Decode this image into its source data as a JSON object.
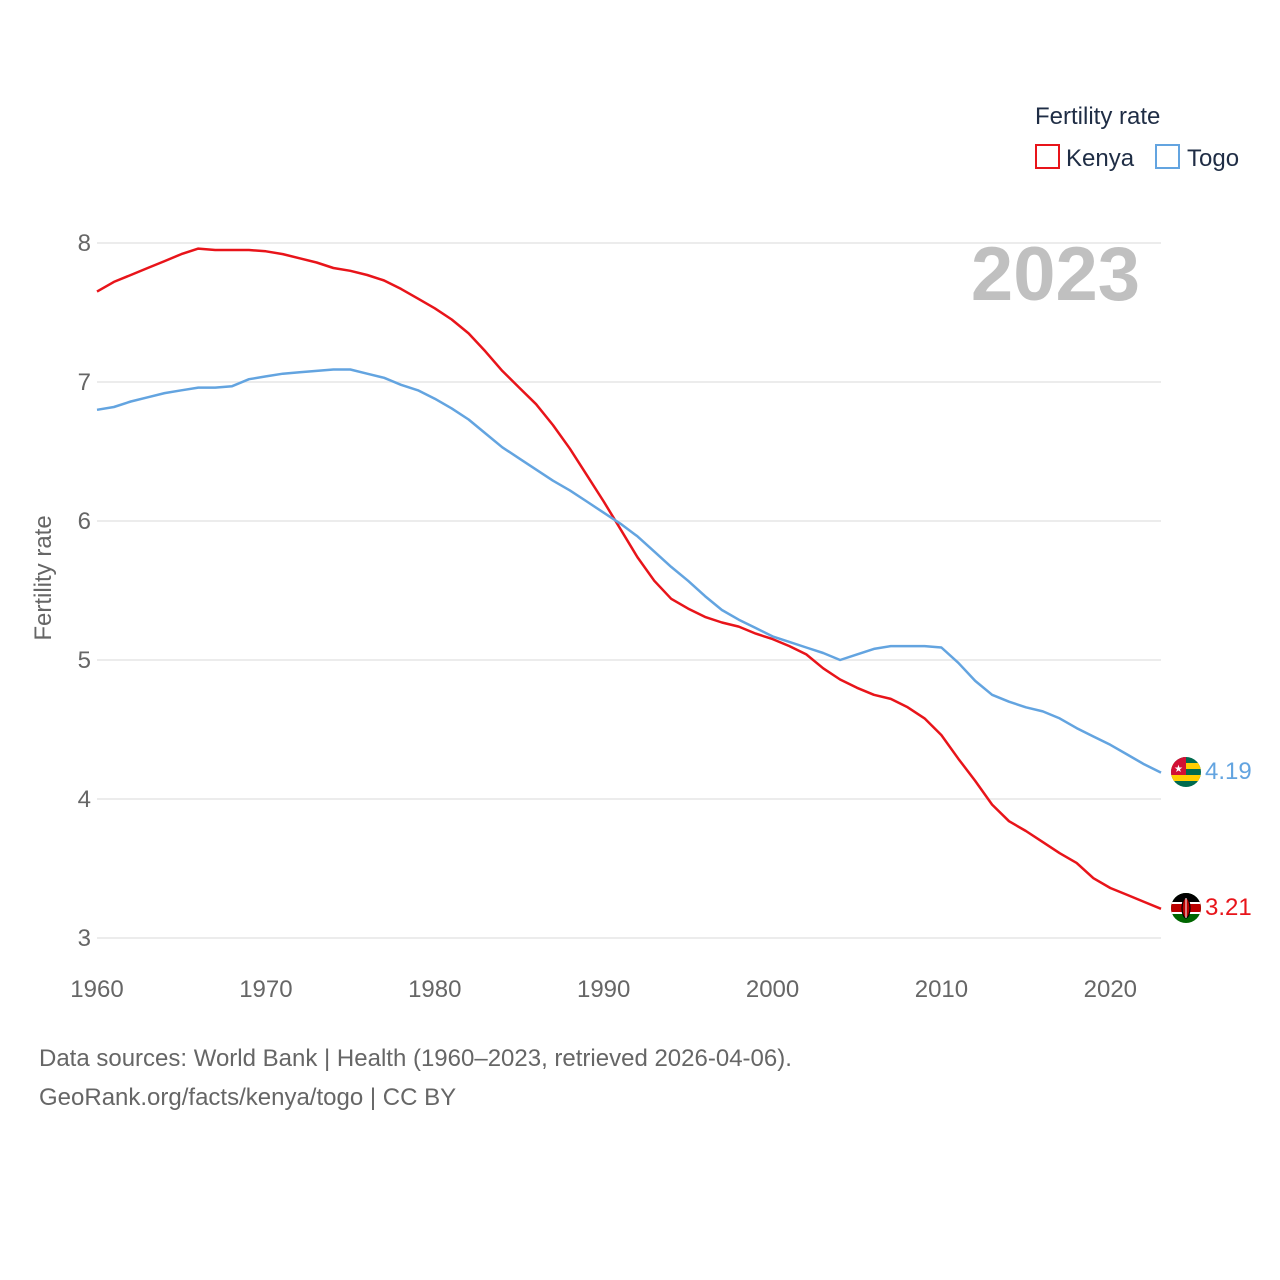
{
  "chart_data": {
    "type": "line",
    "title": "",
    "xlabel": "",
    "ylabel": "Fertility rate",
    "xlim": [
      1960,
      2023
    ],
    "ylim": [
      3,
      8
    ],
    "year_label": "2023",
    "legend": {
      "title": "Fertility rate",
      "placement": "top-right",
      "items": [
        "Kenya",
        "Togo"
      ]
    },
    "x_ticks": [
      1960,
      1970,
      1980,
      1990,
      2000,
      2010,
      2020
    ],
    "y_ticks": [
      3,
      4,
      5,
      6,
      7,
      8
    ],
    "x": [
      1960,
      1961,
      1962,
      1963,
      1964,
      1965,
      1966,
      1967,
      1968,
      1969,
      1970,
      1971,
      1972,
      1973,
      1974,
      1975,
      1976,
      1977,
      1978,
      1979,
      1980,
      1981,
      1982,
      1983,
      1984,
      1985,
      1986,
      1987,
      1988,
      1989,
      1990,
      1991,
      1992,
      1993,
      1994,
      1995,
      1996,
      1997,
      1998,
      1999,
      2000,
      2001,
      2002,
      2003,
      2004,
      2005,
      2006,
      2007,
      2008,
      2009,
      2010,
      2011,
      2012,
      2013,
      2014,
      2015,
      2016,
      2017,
      2018,
      2019,
      2020,
      2021,
      2022,
      2023
    ],
    "series": [
      {
        "name": "Kenya",
        "color": "#e8141a",
        "end_label": "3.21",
        "values": [
          7.65,
          7.72,
          7.77,
          7.82,
          7.87,
          7.92,
          7.96,
          7.95,
          7.95,
          7.95,
          7.94,
          7.92,
          7.89,
          7.86,
          7.82,
          7.8,
          7.77,
          7.73,
          7.67,
          7.6,
          7.53,
          7.45,
          7.35,
          7.22,
          7.08,
          6.96,
          6.84,
          6.69,
          6.52,
          6.33,
          6.14,
          5.94,
          5.74,
          5.57,
          5.44,
          5.37,
          5.31,
          5.27,
          5.24,
          5.19,
          5.15,
          5.1,
          5.04,
          4.94,
          4.86,
          4.8,
          4.75,
          4.72,
          4.66,
          4.58,
          4.46,
          4.29,
          4.13,
          3.96,
          3.84,
          3.77,
          3.69,
          3.61,
          3.54,
          3.43,
          3.36,
          3.31,
          3.26,
          3.21
        ]
      },
      {
        "name": "Togo",
        "color": "#63a4e0",
        "end_label": "4.19",
        "values": [
          6.8,
          6.82,
          6.86,
          6.89,
          6.92,
          6.94,
          6.96,
          6.96,
          6.97,
          7.02,
          7.04,
          7.06,
          7.07,
          7.08,
          7.09,
          7.09,
          7.06,
          7.03,
          6.98,
          6.94,
          6.88,
          6.81,
          6.73,
          6.63,
          6.53,
          6.45,
          6.37,
          6.29,
          6.22,
          6.14,
          6.06,
          5.98,
          5.89,
          5.78,
          5.67,
          5.57,
          5.46,
          5.36,
          5.29,
          5.23,
          5.17,
          5.13,
          5.09,
          5.05,
          5.0,
          5.04,
          5.08,
          5.1,
          5.1,
          5.1,
          5.09,
          4.98,
          4.85,
          4.75,
          4.7,
          4.66,
          4.63,
          4.58,
          4.51,
          4.45,
          4.39,
          4.32,
          4.25,
          4.19
        ]
      }
    ]
  },
  "footer": {
    "source_line": "Data sources: World Bank | Health (1960–2023, retrieved 2026-04-06).",
    "url_line": "GeoRank.org/facts/kenya/togo | CC BY"
  }
}
